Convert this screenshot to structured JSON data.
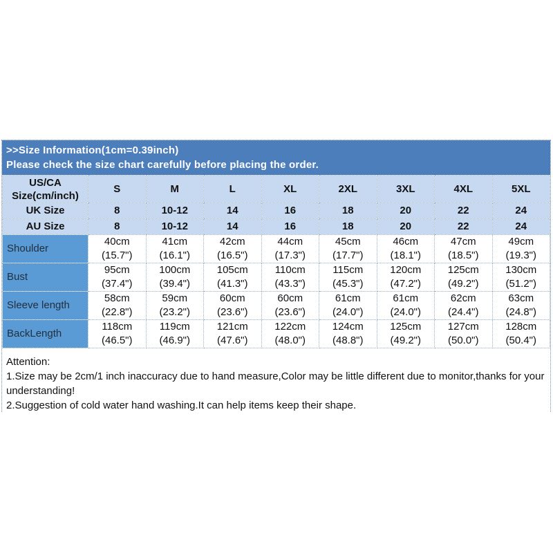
{
  "header": {
    "title": ">>Size Information(1cm=0.39inch)",
    "subtitle": "Please check the size chart carefully before placing the order."
  },
  "size_table": {
    "rows": [
      {
        "kind": "head",
        "label": "US/CA\nSize(cm/inch)",
        "cells": [
          "S",
          "M",
          "L",
          "XL",
          "2XL",
          "3XL",
          "4XL",
          "5XL"
        ]
      },
      {
        "kind": "sizes",
        "label": "UK Size",
        "cells": [
          "8",
          "10-12",
          "14",
          "16",
          "18",
          "20",
          "22",
          "24"
        ]
      },
      {
        "kind": "sizes",
        "label": "AU Size",
        "cells": [
          "8",
          "10-12",
          "14",
          "16",
          "18",
          "20",
          "22",
          "24"
        ]
      },
      {
        "kind": "measure",
        "label": "Shoulder",
        "cells": [
          "40cm\n(15.7\")",
          "41cm\n(16.1\")",
          "42cm\n(16.5\")",
          "44cm\n(17.3\")",
          "45cm\n(17.7\")",
          "46cm\n(18.1\")",
          "47cm\n(18.5\")",
          "49cm\n(19.3\")"
        ]
      },
      {
        "kind": "measure",
        "label": "Bust",
        "cells": [
          "95cm\n(37.4\")",
          "100cm\n(39.4\")",
          "105cm\n(41.3\")",
          "110cm\n(43.3\")",
          "115cm\n(45.3\")",
          "120cm\n(47.2\")",
          "125cm\n(49.2\")",
          "130cm\n(51.2\")"
        ]
      },
      {
        "kind": "measure",
        "label": "Sleeve length",
        "cells": [
          "58cm\n(22.8\")",
          "59cm\n(23.2\")",
          "60cm\n(23.6\")",
          "60cm\n(23.6\")",
          "61cm\n(24.0\")",
          "61cm\n(24.0\")",
          "62cm\n(24.4\")",
          "63cm\n(24.8\")"
        ]
      },
      {
        "kind": "measure",
        "label": "BackLength",
        "cells": [
          "118cm\n(46.5\")",
          "119cm\n(46.9\")",
          "121cm\n(47.6\")",
          "122cm\n(48.0\")",
          "124cm\n(48.8\")",
          "125cm\n(49.2\")",
          "127cm\n(50.0\")",
          "128cm\n(50.4\")"
        ]
      }
    ]
  },
  "attention": {
    "heading": "Attention:",
    "note1": "1.Size may be 2cm/1 inch inaccuracy due to hand measure,Color may be little different due to monitor,thanks for your understanding!",
    "note2": "2.Suggestion of cold water hand washing.It can help items keep their shape."
  },
  "colors": {
    "title_band": "#4d7ebc",
    "header_row_bg": "#c6d9f0",
    "label_column_bg": "#5b9bd5",
    "grid_dotted_border": "#98aec8",
    "title_text": "#ffffff"
  },
  "chart_data": {
    "type": "table",
    "title": ">>Size Information(1cm=0.39inch)",
    "columns": [
      "US/CA Size(cm/inch)",
      "S",
      "M",
      "L",
      "XL",
      "2XL",
      "3XL",
      "4XL",
      "5XL"
    ],
    "rows": [
      [
        "UK Size",
        "8",
        "10-12",
        "14",
        "16",
        "18",
        "20",
        "22",
        "24"
      ],
      [
        "AU Size",
        "8",
        "10-12",
        "14",
        "16",
        "18",
        "20",
        "22",
        "24"
      ],
      [
        "Shoulder",
        "40cm (15.7\")",
        "41cm (16.1\")",
        "42cm (16.5\")",
        "44cm (17.3\")",
        "45cm (17.7\")",
        "46cm (18.1\")",
        "47cm (18.5\")",
        "49cm (19.3\")"
      ],
      [
        "Bust",
        "95cm (37.4\")",
        "100cm (39.4\")",
        "105cm (41.3\")",
        "110cm (43.3\")",
        "115cm (45.3\")",
        "120cm (47.2\")",
        "125cm (49.2\")",
        "130cm (51.2\")"
      ],
      [
        "Sleeve length",
        "58cm (22.8\")",
        "59cm (23.2\")",
        "60cm (23.6\")",
        "60cm (23.6\")",
        "61cm (24.0\")",
        "61cm (24.0\")",
        "62cm (24.4\")",
        "63cm (24.8\")"
      ],
      [
        "BackLength",
        "118cm (46.5\")",
        "119cm (46.9\")",
        "121cm (47.6\")",
        "122cm (48.0\")",
        "124cm (48.8\")",
        "125cm (49.2\")",
        "127cm (50.0\")",
        "128cm (50.4\")"
      ]
    ]
  }
}
